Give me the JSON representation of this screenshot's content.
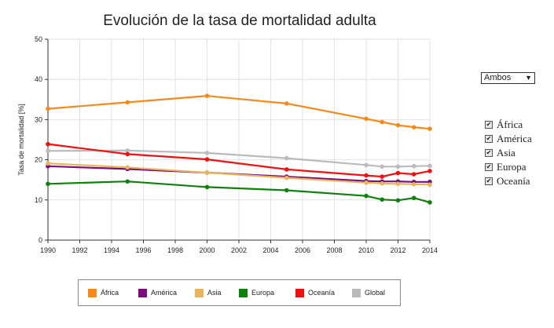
{
  "chart_data": {
    "type": "line",
    "title": "Evolución de la tasa de mortalidad adulta",
    "xlabel": "",
    "ylabel": "Tasa de mortalidad [%]",
    "xlim": [
      1990,
      2014
    ],
    "ylim": [
      0,
      50
    ],
    "x_ticks": [
      "1990",
      "1992",
      "1994",
      "1996",
      "1998",
      "2000",
      "2002",
      "2004",
      "2006",
      "2008",
      "2010",
      "2012",
      "2014"
    ],
    "y_ticks": [
      "0",
      "10",
      "20",
      "30",
      "40",
      "50"
    ],
    "grid": true,
    "legend_position": "bottom",
    "x": [
      1990,
      1995,
      2000,
      2005,
      2010,
      2011,
      2012,
      2013,
      2014
    ],
    "series": [
      {
        "name": "África",
        "color": "#f28a1e",
        "values": [
          32.7,
          34.3,
          35.9,
          34.0,
          30.2,
          29.4,
          28.6,
          28.1,
          27.7
        ]
      },
      {
        "name": "América",
        "color": "#7b0e7b",
        "values": [
          18.4,
          17.7,
          16.8,
          15.8,
          14.7,
          14.6,
          14.6,
          14.5,
          14.5
        ]
      },
      {
        "name": "Asia",
        "color": "#e8b55c",
        "values": [
          19.1,
          18.1,
          16.8,
          15.5,
          14.3,
          14.1,
          14.0,
          13.9,
          13.8
        ]
      },
      {
        "name": "Europa",
        "color": "#11800f",
        "values": [
          14.0,
          14.6,
          13.2,
          12.4,
          11.0,
          10.1,
          9.9,
          10.5,
          9.4
        ]
      },
      {
        "name": "Oceanía",
        "color": "#ee1111",
        "values": [
          23.9,
          21.4,
          20.1,
          17.6,
          16.1,
          15.8,
          16.7,
          16.4,
          17.2
        ]
      },
      {
        "name": "Global",
        "color": "#bbbbbb",
        "values": [
          22.2,
          22.3,
          21.7,
          20.4,
          18.7,
          18.3,
          18.3,
          18.4,
          18.5
        ]
      }
    ]
  },
  "controls": {
    "select_value": "Ambos",
    "select_arrow": "▼",
    "checkbox_mark": "✔",
    "checklist": [
      {
        "label": "África",
        "checked": true
      },
      {
        "label": "América",
        "checked": true
      },
      {
        "label": "Asia",
        "checked": true
      },
      {
        "label": "Europa",
        "checked": true
      },
      {
        "label": "Oceanía",
        "checked": true
      }
    ]
  },
  "legend": [
    {
      "label": "África",
      "color": "#f28a1e"
    },
    {
      "label": "América",
      "color": "#7b0e7b"
    },
    {
      "label": "Asia",
      "color": "#e8b55c"
    },
    {
      "label": "Europa",
      "color": "#11800f"
    },
    {
      "label": "Oceanía",
      "color": "#ee1111"
    },
    {
      "label": "Global",
      "color": "#bbbbbb"
    }
  ]
}
